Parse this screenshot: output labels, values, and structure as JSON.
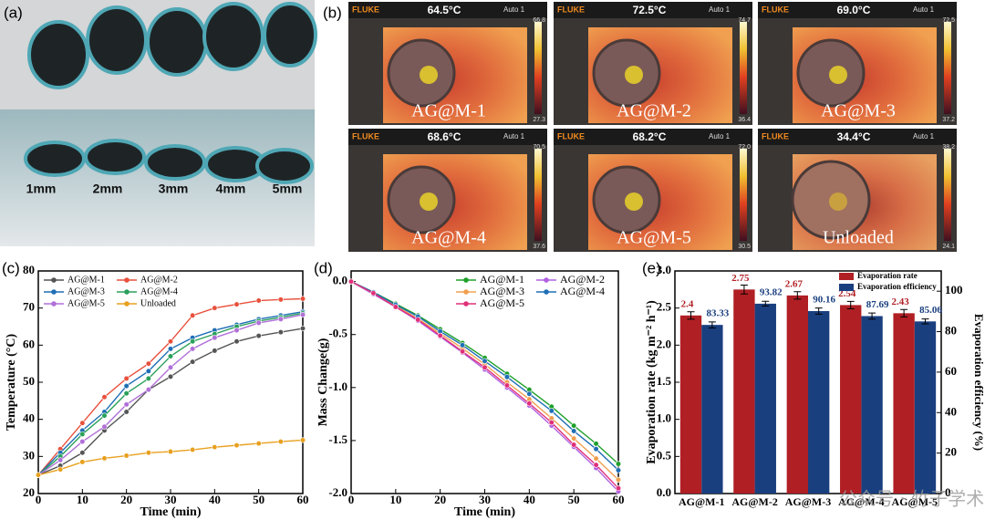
{
  "figure": {
    "panel_a": {
      "label": "(a)",
      "thickness_labels": [
        "1mm",
        "2mm",
        "3mm",
        "4mm",
        "5mm"
      ]
    },
    "panel_b": {
      "label": "(b)",
      "brand": "FLUKE",
      "mode": "Auto 1",
      "tiles": [
        {
          "temperature": "64.5°C",
          "sample": "AG@M-1",
          "scale_max": "66.8",
          "scale_min": "27.3"
        },
        {
          "temperature": "72.5°C",
          "sample": "AG@M-2",
          "scale_max": "74.7",
          "scale_min": "36.4"
        },
        {
          "temperature": "69.0°C",
          "sample": "AG@M-3",
          "scale_max": "72.5",
          "scale_min": "37.2"
        },
        {
          "temperature": "68.6°C",
          "sample": "AG@M-4",
          "scale_max": "70.5",
          "scale_min": "37.6"
        },
        {
          "temperature": "68.2°C",
          "sample": "AG@M-5",
          "scale_max": "72.0",
          "scale_min": "30.5"
        },
        {
          "temperature": "34.4°C",
          "sample": "Unloaded",
          "scale_max": "38.2",
          "scale_min": "24.1"
        }
      ]
    },
    "watermark": "公众号 · 竹子学术"
  },
  "chart_data": [
    {
      "type": "line",
      "panel_label": "(c)",
      "x_label": "Time (min)",
      "y_label": "Temperature (°C)",
      "x": [
        0,
        5,
        10,
        15,
        20,
        25,
        30,
        35,
        40,
        45,
        50,
        55,
        60
      ],
      "xlim": [
        0,
        60
      ],
      "xticks": [
        0,
        10,
        20,
        30,
        40,
        50,
        60
      ],
      "ylim": [
        20,
        80
      ],
      "yticks": [
        20,
        30,
        40,
        50,
        60,
        70,
        80
      ],
      "legend": "upper left",
      "series": [
        {
          "name": "AG@M-1",
          "color": "#555555",
          "values": [
            25,
            27.5,
            31,
            37,
            42,
            48,
            51.5,
            55.5,
            58.5,
            61,
            62.5,
            63.5,
            64.5
          ]
        },
        {
          "name": "AG@M-2",
          "color": "#e8513d",
          "values": [
            25,
            32,
            39,
            46,
            51,
            55,
            61,
            68,
            70,
            71,
            72,
            72.3,
            72.5
          ]
        },
        {
          "name": "AG@M-3",
          "color": "#1f6fb5",
          "values": [
            25,
            31,
            37,
            42,
            49,
            53,
            59,
            62,
            64,
            65.5,
            67,
            68,
            69
          ]
        },
        {
          "name": "AG@M-4",
          "color": "#2aa05a",
          "values": [
            25,
            30,
            36,
            41,
            47,
            51,
            57,
            61,
            63,
            65,
            66.5,
            67.5,
            68.6
          ]
        },
        {
          "name": "AG@M-5",
          "color": "#b070d8",
          "values": [
            25,
            29,
            34,
            38,
            44,
            48,
            54,
            59,
            62,
            64,
            66,
            67,
            68.2
          ]
        },
        {
          "name": "Unloaded",
          "color": "#e8a020",
          "values": [
            25,
            26.5,
            28.5,
            29.5,
            30.2,
            31,
            31.3,
            31.8,
            32.5,
            33,
            33.5,
            34,
            34.4
          ]
        }
      ]
    },
    {
      "type": "line",
      "panel_label": "(d)",
      "x_label": "Time (min)",
      "y_label": "Mass Change(g)",
      "x": [
        0,
        5,
        10,
        15,
        20,
        25,
        30,
        35,
        40,
        45,
        50,
        55,
        60
      ],
      "xlim": [
        0,
        60
      ],
      "xticks": [
        0,
        10,
        20,
        30,
        40,
        50,
        60
      ],
      "ylim": [
        -2.0,
        0.1
      ],
      "yticks": [
        {
          "value": 0,
          "label": "0.0"
        },
        -0.5,
        {
          "value": -1,
          "label": "-1.0"
        },
        -1.5,
        {
          "value": -2,
          "label": "-2.0"
        }
      ],
      "legend": "upper right",
      "series": [
        {
          "name": "AG@M-1",
          "color": "#1fa02a",
          "values": [
            0,
            -0.1,
            -0.21,
            -0.32,
            -0.45,
            -0.58,
            -0.72,
            -0.87,
            -1.02,
            -1.18,
            -1.36,
            -1.53,
            -1.72
          ]
        },
        {
          "name": "AG@M-2",
          "color": "#b060e0",
          "values": [
            0,
            -0.12,
            -0.24,
            -0.37,
            -0.52,
            -0.67,
            -0.83,
            -1.0,
            -1.17,
            -1.36,
            -1.56,
            -1.76,
            -1.98
          ]
        },
        {
          "name": "AG@M-3",
          "color": "#f0a050",
          "values": [
            0,
            -0.11,
            -0.23,
            -0.35,
            -0.49,
            -0.63,
            -0.78,
            -0.95,
            -1.11,
            -1.29,
            -1.48,
            -1.67,
            -1.87
          ]
        },
        {
          "name": "AG@M-4",
          "color": "#1f6fb5",
          "values": [
            0,
            -0.1,
            -0.22,
            -0.33,
            -0.47,
            -0.6,
            -0.75,
            -0.9,
            -1.06,
            -1.22,
            -1.41,
            -1.58,
            -1.78
          ]
        },
        {
          "name": "AG@M-5",
          "color": "#e0307a",
          "values": [
            0,
            -0.11,
            -0.24,
            -0.36,
            -0.51,
            -0.66,
            -0.81,
            -0.98,
            -1.15,
            -1.33,
            -1.54,
            -1.73,
            -1.95
          ]
        }
      ]
    },
    {
      "type": "bar",
      "panel_label": "(e)",
      "y_label": "Evaporation rate (kg m⁻² h⁻¹)",
      "y2_label": "Evaporation efficiency (%)",
      "categories": [
        "AG@M-1",
        "AG@M-2",
        "AG@M-3",
        "AG@M-4",
        "AG@M-5"
      ],
      "ylim": [
        0,
        3.0
      ],
      "yticks": [
        {
          "value": 0,
          "label": "0.0"
        },
        0.5,
        {
          "value": 1,
          "label": "1.0"
        },
        1.5,
        {
          "value": 2,
          "label": "2.0"
        },
        2.5,
        {
          "value": 3,
          "label": "3.0"
        }
      ],
      "y2lim": [
        0,
        110
      ],
      "y2ticks": [
        0,
        20,
        40,
        60,
        80,
        100
      ],
      "legend": "upper right",
      "series": [
        {
          "name": "Evaporation rate",
          "color": "#b01f24",
          "values": [
            2.4,
            2.75,
            2.67,
            2.54,
            2.43
          ],
          "errors": [
            0.05,
            0.06,
            0.05,
            0.05,
            0.05
          ]
        },
        {
          "name": "Evaporation efficiency",
          "color": "#1a3f7f",
          "axis": "y2",
          "values": [
            83.33,
            93.82,
            90.16,
            87.69,
            85.06
          ],
          "errors": [
            1.5,
            1.2,
            1.5,
            1.5,
            1.2
          ]
        }
      ]
    }
  ]
}
